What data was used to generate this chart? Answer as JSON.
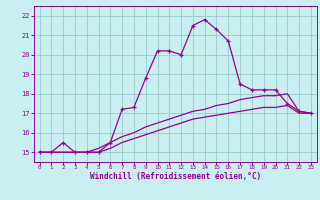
{
  "title": "",
  "xlabel": "Windchill (Refroidissement éolien,°C)",
  "bg_color": "#c8eef0",
  "line_color": "#990099",
  "grid_color": "#99cccc",
  "xmin": -0.5,
  "xmax": 23.5,
  "ymin": 14.5,
  "ymax": 22.5,
  "yticks": [
    15,
    16,
    17,
    18,
    19,
    20,
    21,
    22
  ],
  "xticks": [
    0,
    1,
    2,
    3,
    4,
    5,
    6,
    7,
    8,
    9,
    10,
    11,
    12,
    13,
    14,
    15,
    16,
    17,
    18,
    19,
    20,
    21,
    22,
    23
  ],
  "line1_x": [
    0,
    1,
    2,
    3,
    4,
    5,
    6,
    7,
    8,
    9,
    10,
    11,
    12,
    13,
    14,
    15,
    16,
    17,
    18,
    19,
    20,
    21,
    22,
    23
  ],
  "line1_y": [
    15.0,
    15.0,
    15.5,
    15.0,
    15.0,
    15.0,
    15.5,
    17.2,
    17.3,
    18.8,
    20.2,
    20.2,
    20.0,
    21.5,
    21.8,
    21.3,
    20.7,
    18.5,
    18.2,
    18.2,
    18.2,
    17.5,
    17.1,
    17.0
  ],
  "line2_x": [
    0,
    1,
    2,
    3,
    4,
    5,
    6,
    7,
    8,
    9,
    10,
    11,
    12,
    13,
    14,
    15,
    16,
    17,
    18,
    19,
    20,
    21,
    22,
    23
  ],
  "line2_y": [
    15.0,
    15.0,
    15.0,
    15.0,
    15.0,
    15.2,
    15.5,
    15.8,
    16.0,
    16.3,
    16.5,
    16.7,
    16.9,
    17.1,
    17.2,
    17.4,
    17.5,
    17.7,
    17.8,
    17.9,
    17.9,
    18.0,
    17.1,
    17.0
  ],
  "line3_x": [
    0,
    1,
    2,
    3,
    4,
    5,
    6,
    7,
    8,
    9,
    10,
    11,
    12,
    13,
    14,
    15,
    16,
    17,
    18,
    19,
    20,
    21,
    22,
    23
  ],
  "line3_y": [
    15.0,
    15.0,
    15.0,
    15.0,
    15.0,
    15.0,
    15.2,
    15.5,
    15.7,
    15.9,
    16.1,
    16.3,
    16.5,
    16.7,
    16.8,
    16.9,
    17.0,
    17.1,
    17.2,
    17.3,
    17.3,
    17.4,
    17.0,
    17.0
  ],
  "marker_size": 3.0,
  "linewidth": 0.9
}
